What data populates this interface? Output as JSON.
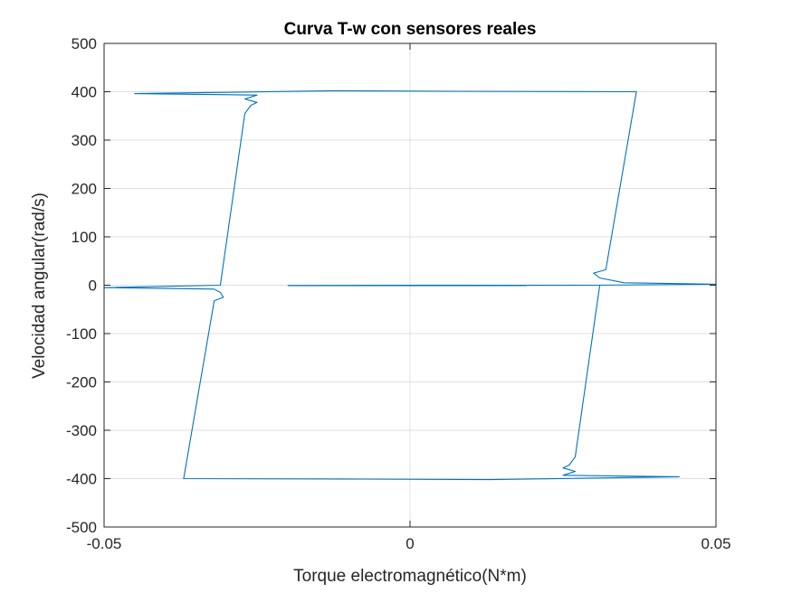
{
  "chart_data": {
    "type": "line",
    "title": "Curva T-w con sensores reales",
    "xlabel": "Torque electromagnético(N*m)",
    "ylabel": "Velocidad angular(rad/s)",
    "xlim": [
      -0.05,
      0.05
    ],
    "ylim": [
      -500,
      500
    ],
    "xticks": [
      -0.05,
      0,
      0.05
    ],
    "xtick_labels": [
      "-0.05",
      "0",
      "0.05"
    ],
    "yticks": [
      -500,
      -400,
      -300,
      -200,
      -100,
      0,
      100,
      200,
      300,
      400,
      500
    ],
    "ytick_labels": [
      "-500",
      "-400",
      "-300",
      "-200",
      "-100",
      "0",
      "100",
      "200",
      "300",
      "400",
      "500"
    ],
    "grid": true,
    "line_color": "#0072bd",
    "series": [
      {
        "values": [
          [
            -0.02,
            -1
          ],
          [
            0.019,
            -1
          ],
          [
            0.005,
            -0.5
          ],
          [
            0.03,
            0
          ],
          [
            0.05,
            2
          ],
          [
            0.035,
            5
          ],
          [
            0.031,
            15
          ],
          [
            0.03,
            25
          ],
          [
            0.032,
            32
          ],
          [
            0.037,
            400
          ],
          [
            0.008,
            401
          ],
          [
            -0.013,
            402
          ],
          [
            -0.045,
            396
          ],
          [
            -0.025,
            393
          ],
          [
            -0.027,
            385
          ],
          [
            -0.025,
            378
          ],
          [
            -0.026,
            372
          ],
          [
            -0.027,
            355
          ],
          [
            -0.031,
            0
          ],
          [
            -0.05,
            -5
          ],
          [
            -0.032,
            -8
          ],
          [
            -0.031,
            -15
          ],
          [
            -0.0305,
            -25
          ],
          [
            -0.032,
            -32
          ],
          [
            -0.037,
            -400
          ],
          [
            -0.008,
            -401
          ],
          [
            0.013,
            -402
          ],
          [
            0.044,
            -396
          ],
          [
            0.025,
            -393
          ],
          [
            0.027,
            -385
          ],
          [
            0.025,
            -378
          ],
          [
            0.026,
            -372
          ],
          [
            0.027,
            -355
          ],
          [
            0.031,
            0
          ],
          [
            0.0,
            0
          ],
          [
            -0.02,
            -0.5
          ]
        ]
      }
    ]
  }
}
